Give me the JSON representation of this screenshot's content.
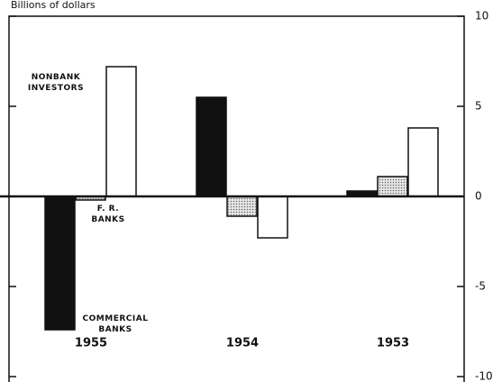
{
  "chart_data": {
    "type": "bar",
    "y_axis_label": "Billions of dollars",
    "categories": [
      "1955",
      "1954",
      "1953"
    ],
    "series": [
      {
        "name": "COMMERCIAL BANKS",
        "color": "#111111",
        "values": [
          -7.4,
          5.5,
          0.3
        ]
      },
      {
        "name": "F. R. BANKS",
        "color": "#c4c4c4",
        "values": [
          -0.2,
          -1.1,
          1.1
        ]
      },
      {
        "name": "NONBANK INVESTORS",
        "color": "#ffffff",
        "values": [
          7.2,
          -2.3,
          3.8
        ]
      }
    ],
    "ylim": [
      -10,
      10
    ],
    "yticks": [
      10,
      5,
      0,
      -5,
      -10
    ]
  }
}
